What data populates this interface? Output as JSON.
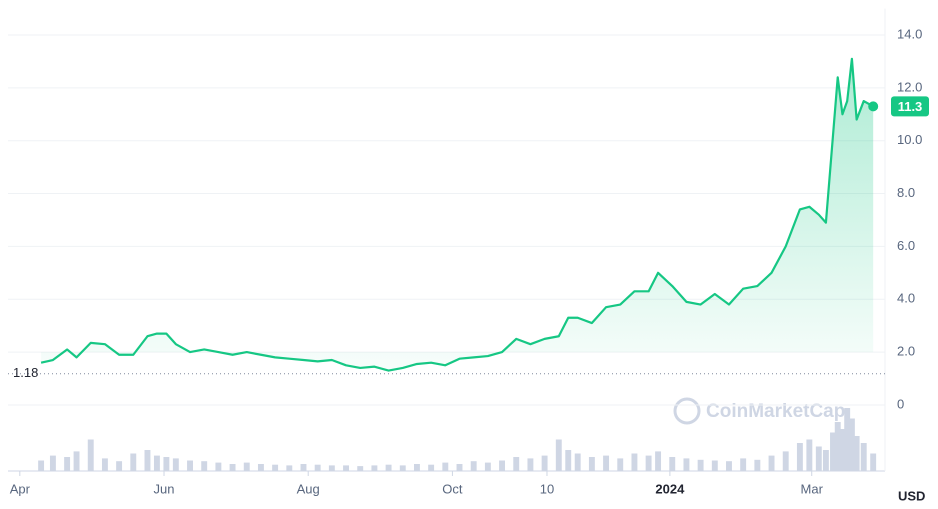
{
  "chart_data": {
    "type": "line",
    "color": "#16c784",
    "volume_color": "#cfd6e4",
    "unit": "USD",
    "watermark": "CoinMarketCap",
    "reference_line": 1.18,
    "current_price": 11.3,
    "xlim": [
      -5,
      366
    ],
    "ylim": [
      -2.5,
      15
    ],
    "y2lim": [
      0,
      100
    ],
    "xticks": [
      {
        "value": 0,
        "label": "Apr"
      },
      {
        "value": 61,
        "label": "Jun"
      },
      {
        "value": 122,
        "label": "Aug"
      },
      {
        "value": 183,
        "label": "Oct"
      },
      {
        "value": 223,
        "label": "10"
      },
      {
        "value": 275,
        "label": "2024"
      },
      {
        "value": 335,
        "label": "Mar"
      }
    ],
    "yticks": [
      0,
      {
        "value": 2,
        "label": "2.0"
      },
      {
        "value": 4,
        "label": "4.0"
      },
      {
        "value": 6,
        "label": "6.0"
      },
      {
        "value": 8,
        "label": "8.0"
      },
      {
        "value": 10,
        "label": "10.0"
      },
      {
        "value": 12,
        "label": "12.0"
      },
      {
        "value": 14,
        "label": "14.0"
      }
    ],
    "x": [
      9,
      14,
      20,
      24,
      30,
      36,
      42,
      48,
      54,
      58,
      62,
      66,
      72,
      78,
      84,
      90,
      96,
      102,
      108,
      114,
      120,
      126,
      132,
      138,
      144,
      150,
      156,
      162,
      168,
      174,
      180,
      186,
      192,
      198,
      204,
      210,
      216,
      222,
      228,
      232,
      236,
      242,
      248,
      254,
      260,
      266,
      270,
      276,
      282,
      288,
      294,
      300,
      306,
      312,
      318,
      324,
      330,
      334,
      338,
      341,
      344,
      346,
      348,
      350,
      352,
      354,
      357,
      361
    ],
    "values": [
      1.6,
      1.7,
      2.1,
      1.8,
      2.35,
      2.3,
      1.9,
      1.9,
      2.6,
      2.7,
      2.7,
      2.3,
      2.0,
      2.1,
      2.0,
      1.9,
      2.0,
      1.9,
      1.8,
      1.75,
      1.7,
      1.65,
      1.7,
      1.5,
      1.4,
      1.45,
      1.3,
      1.4,
      1.55,
      1.6,
      1.5,
      1.75,
      1.8,
      1.85,
      2.0,
      2.5,
      2.3,
      2.5,
      2.6,
      3.3,
      3.3,
      3.1,
      3.7,
      3.8,
      4.3,
      4.3,
      5.0,
      4.5,
      3.9,
      3.8,
      4.2,
      3.8,
      4.4,
      4.5,
      5.0,
      6.0,
      7.4,
      7.5,
      7.2,
      6.9,
      10.2,
      12.4,
      11.0,
      11.5,
      13.1,
      10.8,
      11.5,
      11.3
    ],
    "volumes": [
      15,
      22,
      20,
      28,
      45,
      18,
      14,
      25,
      30,
      22,
      20,
      18,
      15,
      14,
      12,
      10,
      12,
      10,
      9,
      8,
      10,
      9,
      8,
      8,
      7,
      8,
      9,
      8,
      10,
      9,
      12,
      10,
      14,
      12,
      15,
      20,
      18,
      22,
      45,
      30,
      25,
      20,
      22,
      18,
      25,
      22,
      28,
      20,
      18,
      16,
      15,
      14,
      18,
      16,
      22,
      28,
      40,
      45,
      35,
      30,
      55,
      70,
      60,
      90,
      75,
      50,
      40,
      25
    ]
  }
}
